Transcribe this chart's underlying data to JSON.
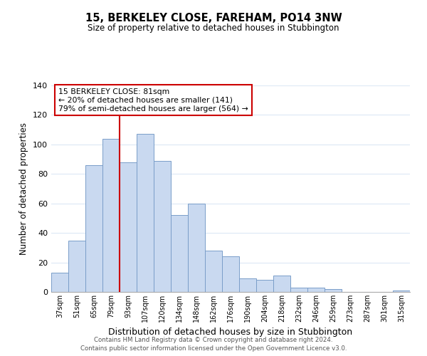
{
  "title": "15, BERKELEY CLOSE, FAREHAM, PO14 3NW",
  "subtitle": "Size of property relative to detached houses in Stubbington",
  "xlabel": "Distribution of detached houses by size in Stubbington",
  "ylabel": "Number of detached properties",
  "bar_labels": [
    "37sqm",
    "51sqm",
    "65sqm",
    "79sqm",
    "93sqm",
    "107sqm",
    "120sqm",
    "134sqm",
    "148sqm",
    "162sqm",
    "176sqm",
    "190sqm",
    "204sqm",
    "218sqm",
    "232sqm",
    "246sqm",
    "259sqm",
    "273sqm",
    "287sqm",
    "301sqm",
    "315sqm"
  ],
  "bar_values": [
    13,
    35,
    86,
    104,
    88,
    107,
    89,
    52,
    60,
    28,
    24,
    9,
    8,
    11,
    3,
    3,
    2,
    0,
    0,
    0,
    1
  ],
  "bar_color": "#c9d9f0",
  "bar_edge_color": "#7a9ec9",
  "vline_x": 3.5,
  "vline_color": "#cc0000",
  "ylim": [
    0,
    140
  ],
  "yticks": [
    0,
    20,
    40,
    60,
    80,
    100,
    120,
    140
  ],
  "annotation_title": "15 BERKELEY CLOSE: 81sqm",
  "annotation_line1": "← 20% of detached houses are smaller (141)",
  "annotation_line2": "79% of semi-detached houses are larger (564) →",
  "annotation_box_color": "#ffffff",
  "annotation_box_edge": "#cc0000",
  "footer1": "Contains HM Land Registry data © Crown copyright and database right 2024.",
  "footer2": "Contains public sector information licensed under the Open Government Licence v3.0.",
  "background_color": "#ffffff",
  "grid_color": "#dce8f5"
}
